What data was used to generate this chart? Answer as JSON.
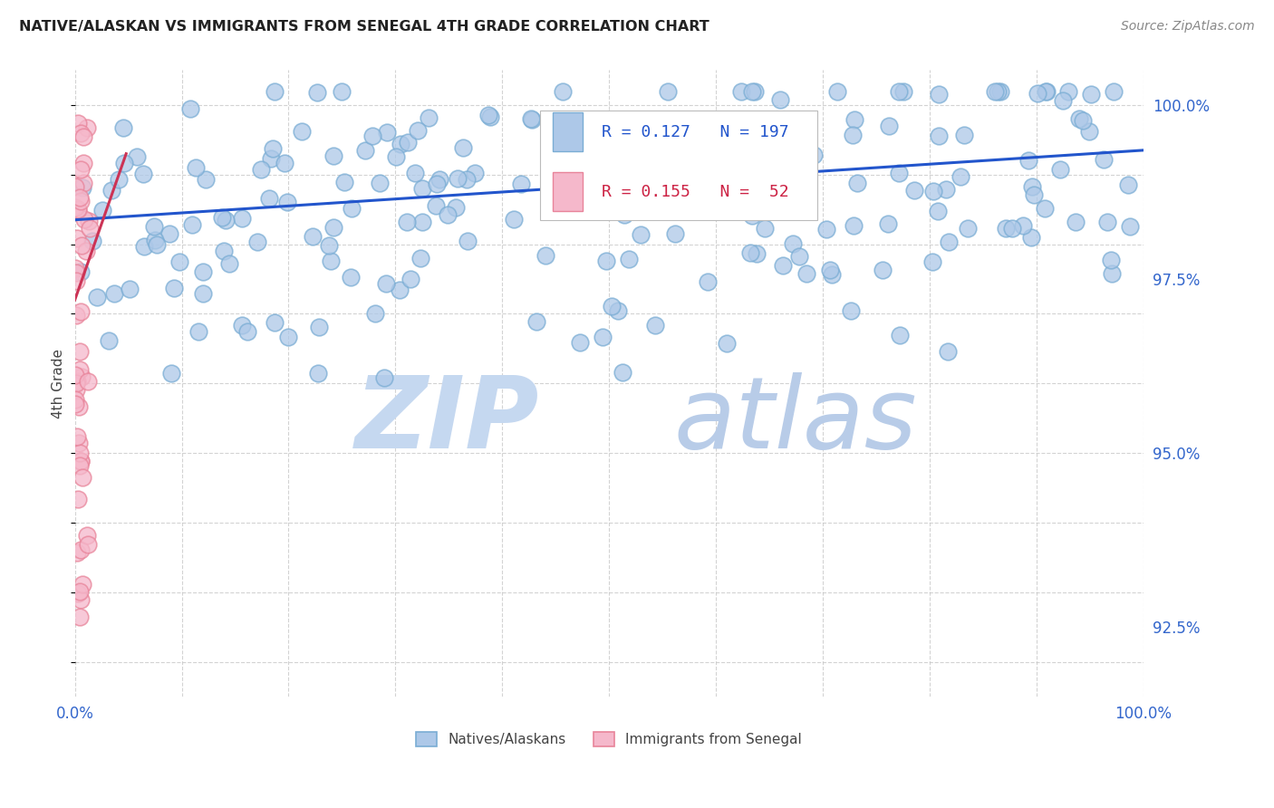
{
  "title": "NATIVE/ALASKAN VS IMMIGRANTS FROM SENEGAL 4TH GRADE CORRELATION CHART",
  "source": "Source: ZipAtlas.com",
  "ylabel": "4th Grade",
  "ylabel_right_ticks": [
    "92.5%",
    "95.0%",
    "97.5%",
    "100.0%"
  ],
  "ylabel_right_values": [
    0.925,
    0.95,
    0.975,
    1.0
  ],
  "xmin": 0.0,
  "xmax": 1.0,
  "ymin": 0.915,
  "ymax": 1.005,
  "blue_R": 0.127,
  "blue_N": 197,
  "pink_R": 0.155,
  "pink_N": 52,
  "blue_color": "#adc8e8",
  "blue_edge": "#7aadd4",
  "pink_color": "#f5b8cb",
  "pink_edge": "#e8849a",
  "blue_line_color": "#2255cc",
  "pink_line_color": "#cc3355",
  "watermark_zip_color": "#c5d8f0",
  "watermark_atlas_color": "#b8cce8",
  "title_color": "#222222",
  "axis_label_color": "#3366cc",
  "grid_color": "#c8c8c8",
  "background_color": "#ffffff"
}
